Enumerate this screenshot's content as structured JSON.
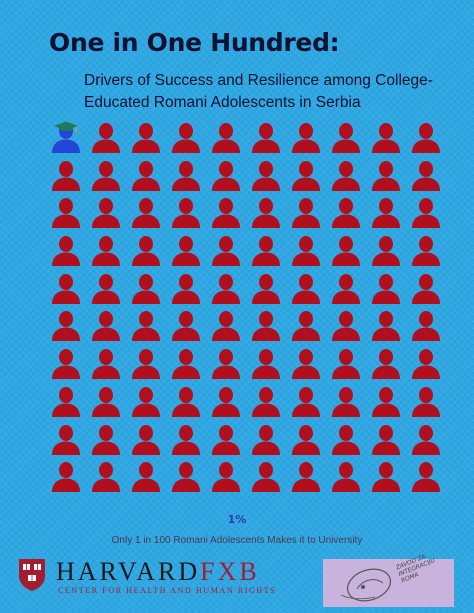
{
  "title": "One in One Hundred:",
  "subtitle": "Drivers of Success and Resilience among College-Educated Romani Adolescents in Serbia",
  "grid": {
    "total": 100,
    "highlighted": 1,
    "colors": {
      "default": "#b0101e",
      "highlight": "#2446d6",
      "cap": "#1e7a5a"
    },
    "icons": {
      "default": "person-icon",
      "highlight": "graduate-person-icon"
    }
  },
  "stat": "1%",
  "caption": "Only 1 in 100 Romani Adolescents Makes it to University",
  "logos": {
    "harvard_part1": "HARVARD",
    "harvard_part2": "FXB",
    "harvard_sub": "CENTER FOR HEALTH AND HUMAN RIGHTS",
    "partner_text": "ZAVOD ZA INTEGRACIJU ROMA"
  }
}
